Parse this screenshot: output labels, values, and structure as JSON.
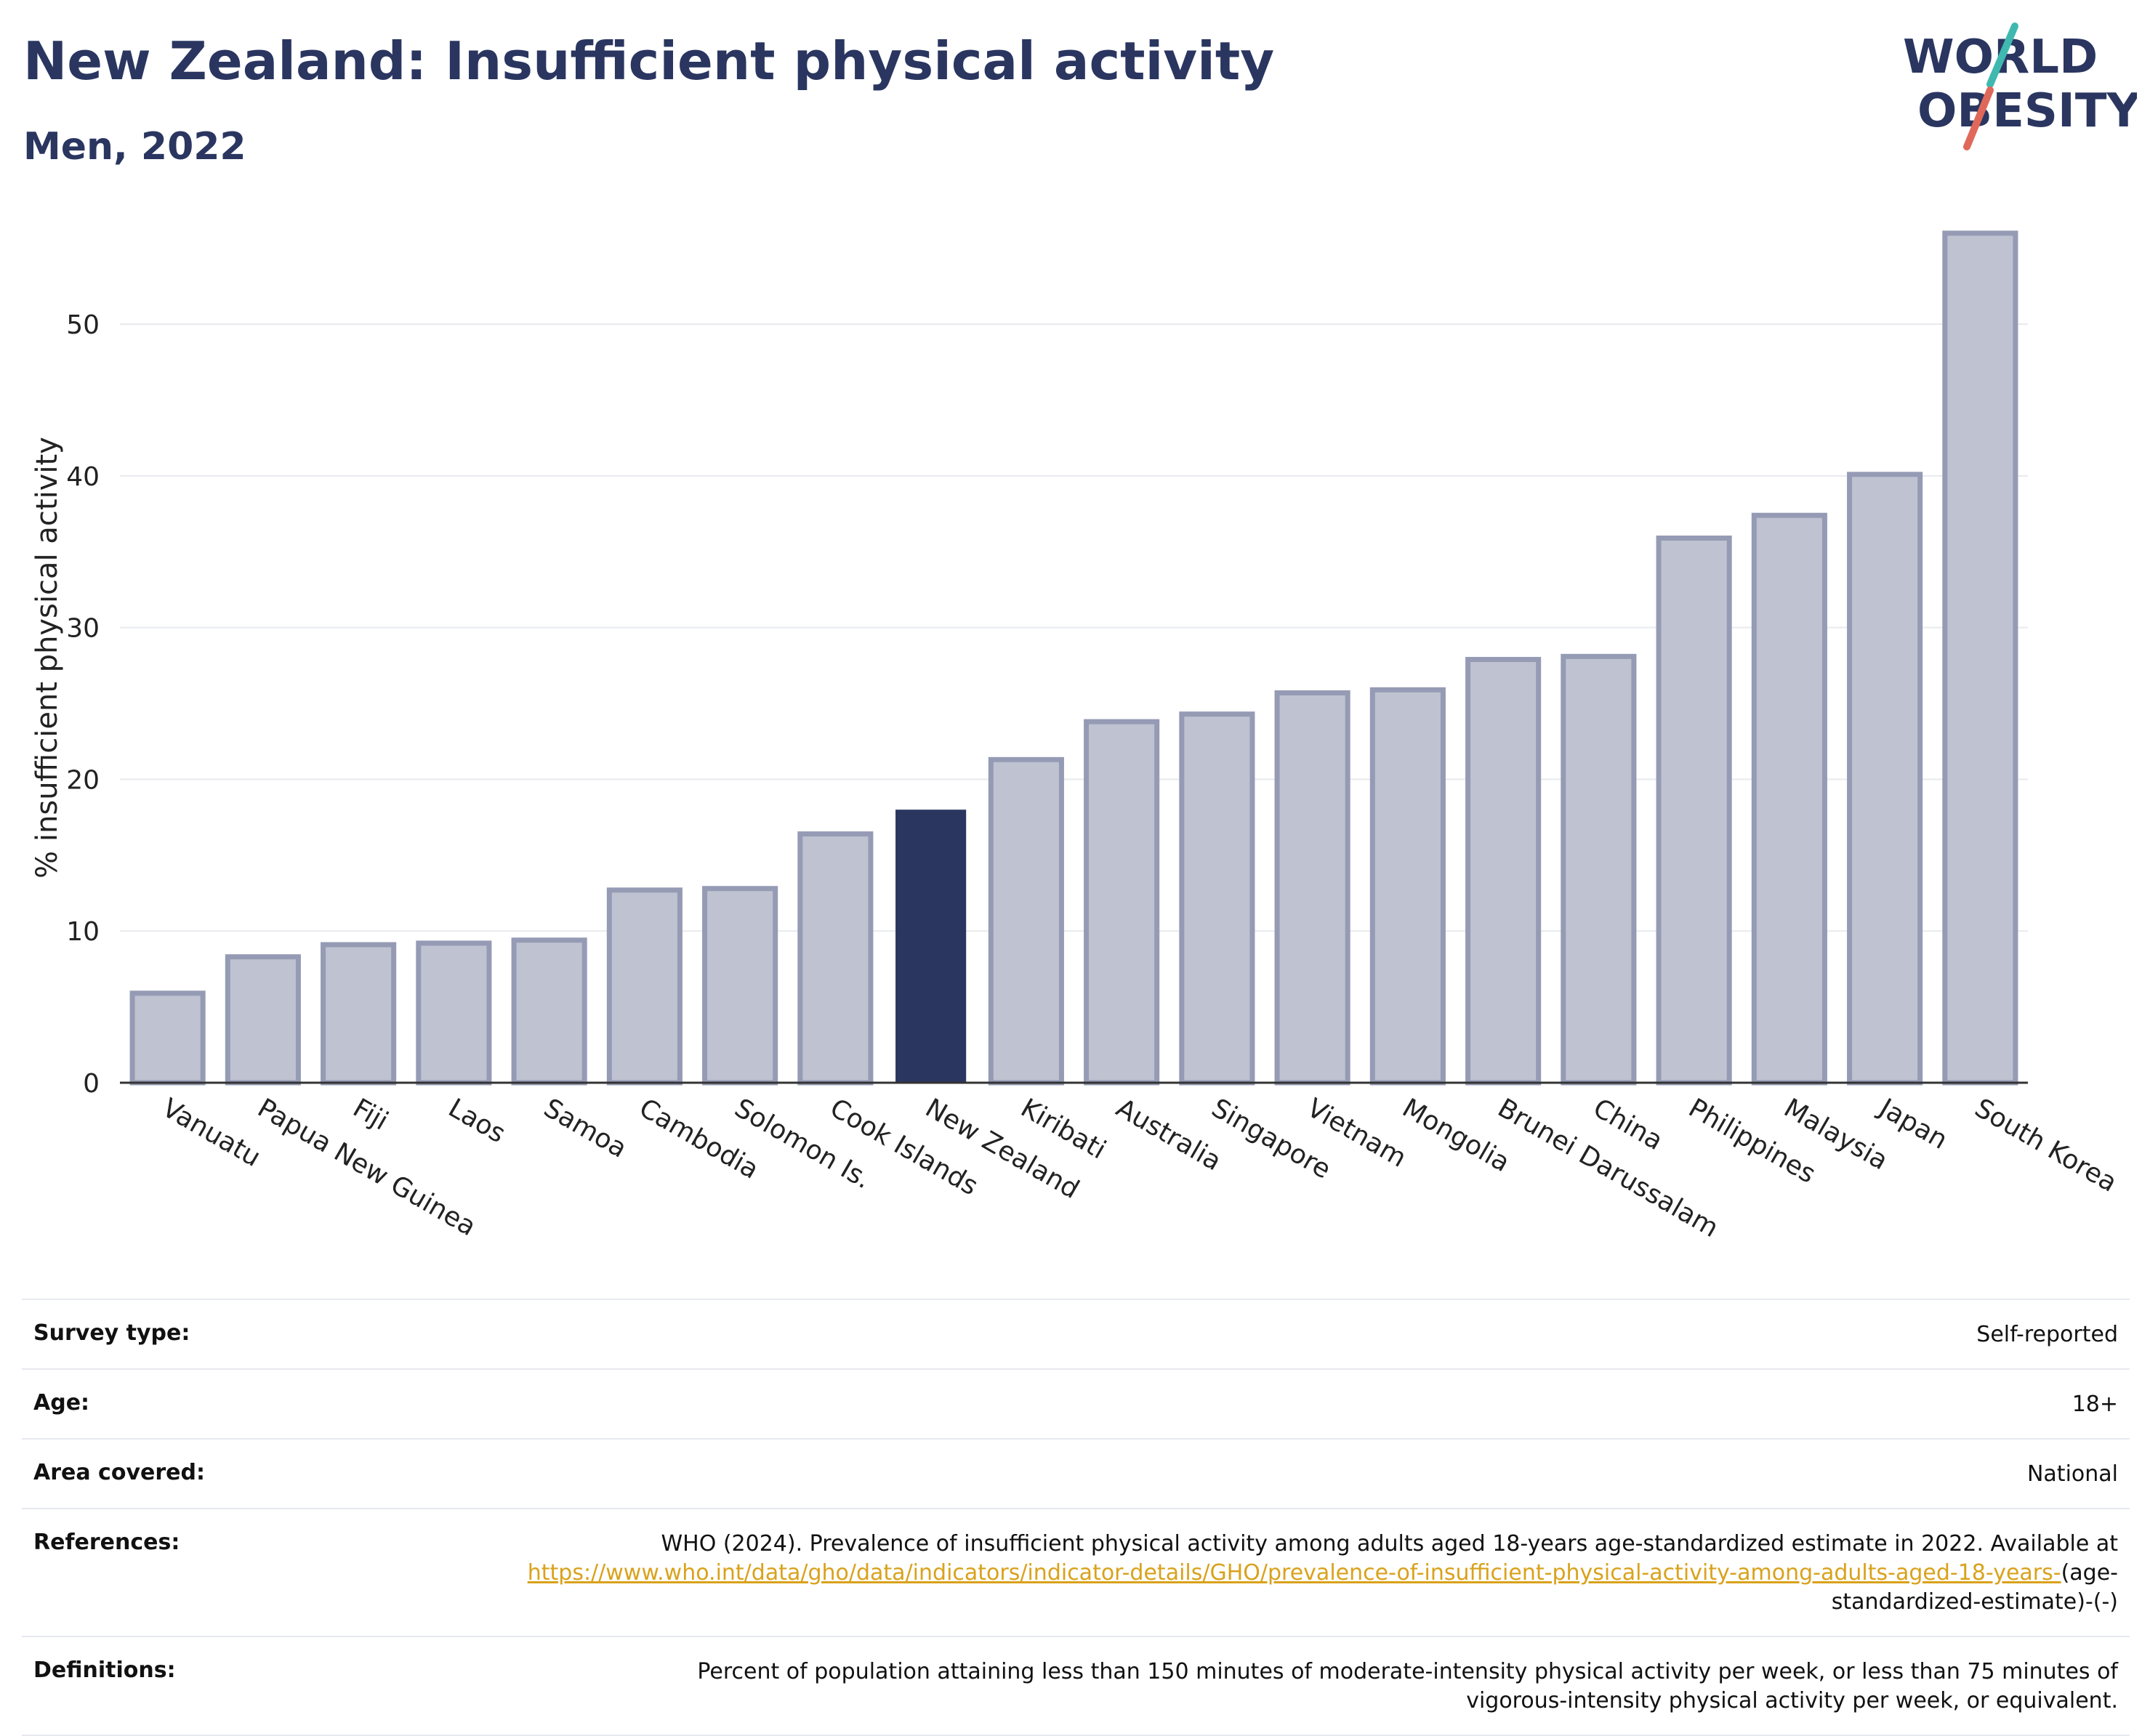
{
  "header": {
    "title": "New Zealand: Insufficient physical activity",
    "subtitle": "Men, 2022"
  },
  "logo": {
    "line1": "WORLD",
    "line2": "OBESITY",
    "colors": {
      "text": "#2a3660",
      "slash_teal": "#3fb8b0",
      "slash_coral": "#e0685a"
    }
  },
  "chart_data": {
    "type": "bar",
    "ylabel": "% insufficient physical activity",
    "xlabel": "",
    "ylim": [
      0,
      57
    ],
    "yticks": [
      0,
      10,
      20,
      30,
      40,
      50
    ],
    "grid": true,
    "highlight": "New Zealand",
    "colors": {
      "bar": "#bfc2d0",
      "bar_border": "#959bb4",
      "highlight": "#2a3660",
      "grid": "#e8eaee"
    },
    "categories": [
      "Vanuatu",
      "Papua New Guinea",
      "Fiji",
      "Laos",
      "Samoa",
      "Cambodia",
      "Solomon Is.",
      "Cook Islands",
      "New Zealand",
      "Kiribati",
      "Australia",
      "Singapore",
      "Vietnam",
      "Mongolia",
      "Brunei Darussalam",
      "China",
      "Philippines",
      "Malaysia",
      "Japan",
      "South Korea"
    ],
    "values": [
      5.9,
      8.3,
      9.1,
      9.2,
      9.4,
      12.7,
      12.8,
      16.4,
      18.0,
      21.3,
      23.8,
      24.3,
      25.7,
      25.9,
      27.9,
      28.1,
      35.9,
      37.4,
      40.1,
      56.0
    ]
  },
  "info": {
    "rows": [
      {
        "key": "Survey type:",
        "value": "Self-reported"
      },
      {
        "key": "Age:",
        "value": "18+"
      },
      {
        "key": "Area covered:",
        "value": "National"
      }
    ],
    "references": {
      "key": "References:",
      "text_before": "WHO (2024). Prevalence of insufficient physical activity among adults aged 18-years age-standardized estimate in 2022. Available at",
      "link": "https://www.who.int/data/gho/data/indicators/indicator-details/GHO/prevalence-of-insufficient-physical-activity-among-adults-aged-18-years-",
      "text_after": "(age-standardized-estimate)-(-)"
    },
    "definitions": {
      "key": "Definitions:",
      "value": "Percent of population attaining less than 150 minutes of moderate-intensity physical activity per week, or less than 75 minutes of vigorous-intensity physical activity per week, or equivalent."
    }
  }
}
